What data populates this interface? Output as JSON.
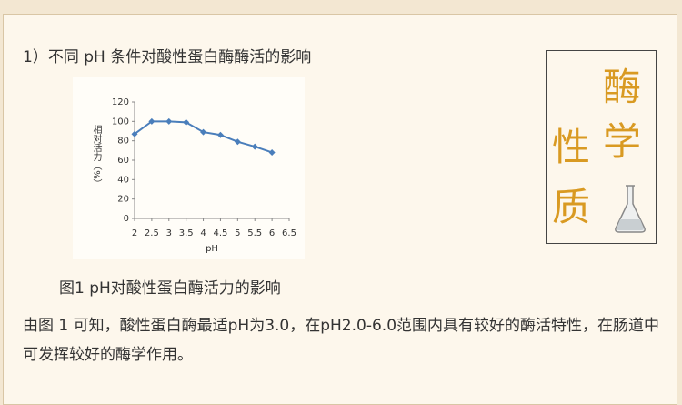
{
  "heading": "1）不同 pH 条件对酸性蛋白酶酶活的影响",
  "chart_data": {
    "type": "line",
    "x_label": "pH",
    "y_label": "相对活力（%）",
    "x": [
      2,
      2.5,
      3,
      3.5,
      4,
      4.5,
      5,
      5.5,
      6
    ],
    "series": [
      {
        "name": "相对活力",
        "color": "#4a7ebb",
        "values": [
          87,
          100,
          100,
          99,
          89,
          86,
          79,
          74,
          68
        ]
      }
    ],
    "xlim": [
      2,
      6.5
    ],
    "xticks": [
      2,
      2.5,
      3,
      3.5,
      4,
      4.5,
      5,
      5.5,
      6,
      6.5
    ],
    "ylim": [
      0,
      120
    ],
    "yticks": [
      0,
      20,
      40,
      60,
      80,
      100,
      120
    ]
  },
  "caption": "图1 pH对酸性蛋白酶活力的影响",
  "paragraph": "由图 1 可知，酸性蛋白酶最适pH为3.0，在pH2.0-6.0范围内具有较好的酶活特性，在肠道中可发挥较好的酶学作用。",
  "badge": {
    "chars": [
      "酶",
      "学",
      "性",
      "质"
    ]
  }
}
